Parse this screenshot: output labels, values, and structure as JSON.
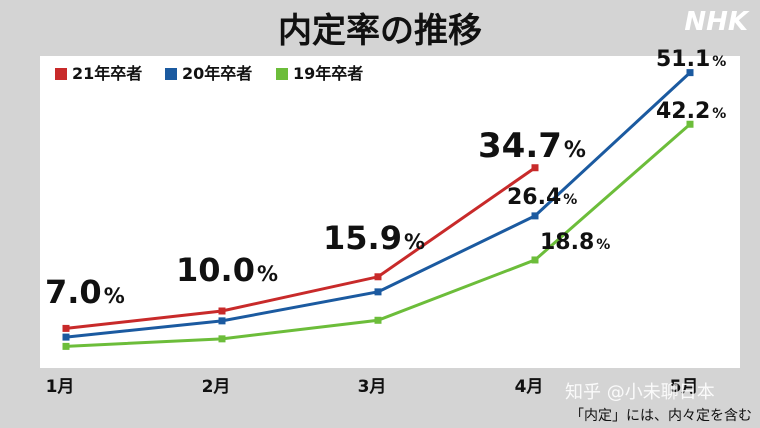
{
  "header": {
    "title": "内定率の推移",
    "brand": "NHK"
  },
  "watermark": "知乎 @小未聊日本",
  "footnote": "「内定」には、内々定を含む",
  "chart_data": {
    "type": "line",
    "title": "内定率の推移",
    "categories": [
      "1月",
      "2月",
      "3月",
      "4月",
      "5月"
    ],
    "legend_position": "top-left",
    "grid": false,
    "series": [
      {
        "name": "21年卒者",
        "color": "#c82a2a",
        "values": [
          7.0,
          10.0,
          15.9,
          34.7,
          null
        ],
        "labels": [
          "7.0",
          "10.0",
          "15.9",
          "34.7",
          null
        ],
        "label_color": "#111111"
      },
      {
        "name": "20年卒者",
        "color": "#1b5aa0",
        "values": [
          5.5,
          8.3,
          13.3,
          26.4,
          51.1
        ],
        "labels": [
          null,
          null,
          null,
          "26.4",
          "51.1"
        ],
        "label_color": "#111111"
      },
      {
        "name": "19年卒者",
        "color": "#6cbd3a",
        "values": [
          3.9,
          5.2,
          8.4,
          18.8,
          42.2
        ],
        "labels": [
          null,
          null,
          null,
          "18.8",
          "42.2"
        ],
        "label_color": "#111111"
      }
    ],
    "percent_sign": "%",
    "highlight": {
      "series": "21年卒者",
      "index": 3,
      "color": "#c82a2a"
    }
  }
}
